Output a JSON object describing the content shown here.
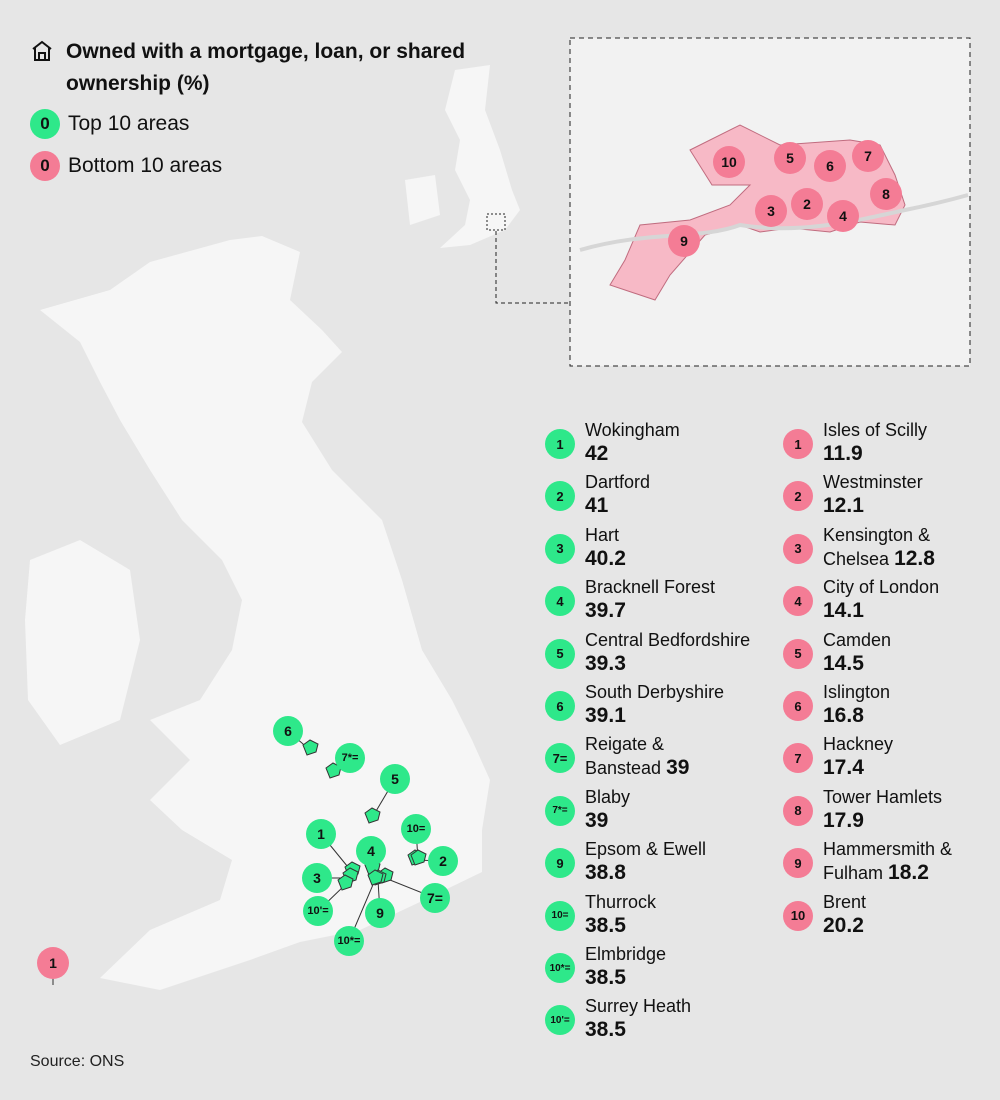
{
  "header": {
    "title": "Owned with a mortgage, loan, or shared ownership (%)"
  },
  "legend": [
    {
      "marker": "0",
      "label": "Top 10 areas",
      "color": "#2ee88a"
    },
    {
      "marker": "0",
      "label": "Bottom 10 areas",
      "color": "#f47c95"
    }
  ],
  "top_areas": [
    {
      "rank": "1",
      "name": "Wokingham",
      "value": 42
    },
    {
      "rank": "2",
      "name": "Dartford",
      "value": 41
    },
    {
      "rank": "3",
      "name": "Hart",
      "value": 40.2
    },
    {
      "rank": "4",
      "name": "Bracknell Forest",
      "value": 39.7
    },
    {
      "rank": "5",
      "name": "Central Bedfordshire",
      "value": 39.3
    },
    {
      "rank": "6",
      "name": "South Derbyshire",
      "value": 39.1
    },
    {
      "rank": "7=",
      "name": "Reigate & Banstead",
      "value": 39
    },
    {
      "rank": "7*=",
      "name": "Blaby",
      "value": 39
    },
    {
      "rank": "9",
      "name": "Epsom & Ewell",
      "value": 38.8
    },
    {
      "rank": "10=",
      "name": "Thurrock",
      "value": 38.5
    },
    {
      "rank": "10*=",
      "name": "Elmbridge",
      "value": 38.5
    },
    {
      "rank": "10'=",
      "name": "Surrey Heath",
      "value": 38.5
    }
  ],
  "bottom_areas": [
    {
      "rank": "1",
      "name": "Isles of Scilly",
      "value": 11.9
    },
    {
      "rank": "2",
      "name": "Westminster",
      "value": 12.1
    },
    {
      "rank": "3",
      "name": "Kensington & Chelsea",
      "value": 12.8
    },
    {
      "rank": "4",
      "name": "City of London",
      "value": 14.1
    },
    {
      "rank": "5",
      "name": "Camden",
      "value": 14.5
    },
    {
      "rank": "6",
      "name": "Islington",
      "value": 16.8
    },
    {
      "rank": "7",
      "name": "Hackney",
      "value": 17.4
    },
    {
      "rank": "8",
      "name": "Tower Hamlets",
      "value": 17.9
    },
    {
      "rank": "9",
      "name": "Hammersmith & Fulham",
      "value": 18.2
    },
    {
      "rank": "10",
      "name": "Brent",
      "value": 20.2
    }
  ],
  "source": "Source: ONS"
}
